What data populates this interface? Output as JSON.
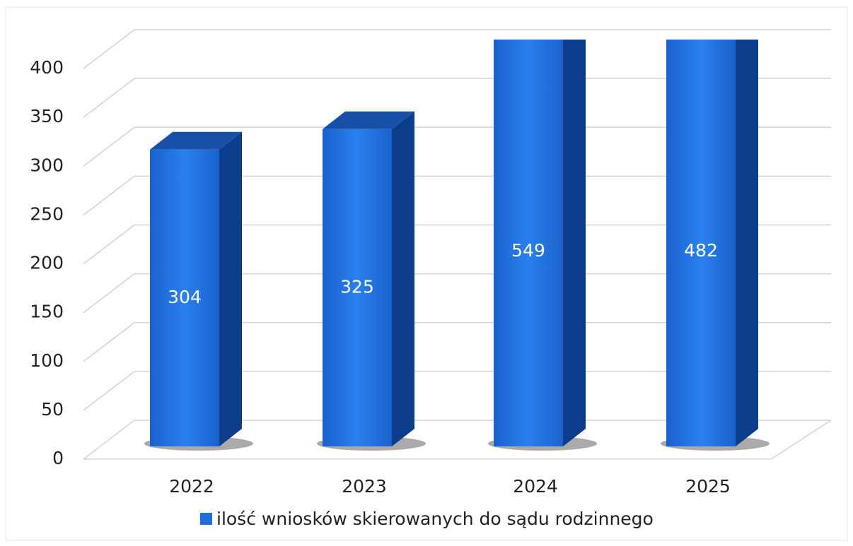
{
  "chart_data": {
    "type": "bar3d",
    "categories": [
      "2022",
      "2023",
      "2024",
      "2025"
    ],
    "series": [
      {
        "name": "ilość wniosków skierowanych do sądu rodzinnego",
        "color": "#1f6fdb",
        "values": [
          304,
          325,
          549,
          482
        ]
      }
    ],
    "ylim": [
      0,
      400
    ],
    "yticks": [
      0,
      50,
      100,
      150,
      200,
      250,
      300,
      350,
      400
    ],
    "grid": true,
    "legend": "bottom"
  }
}
